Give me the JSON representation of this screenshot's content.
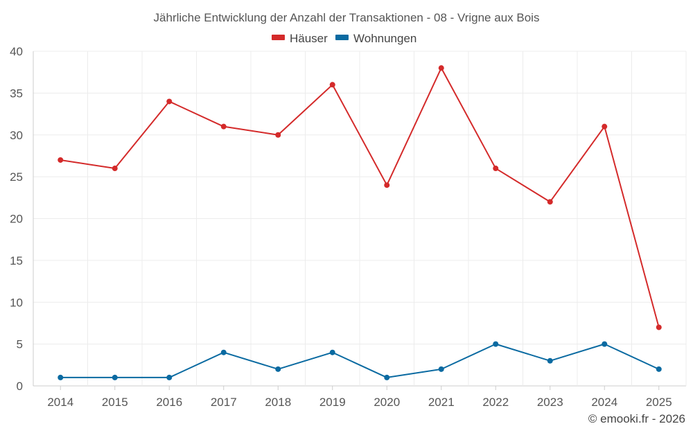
{
  "chart_data": {
    "type": "line",
    "title": "Jährliche Entwicklung der Anzahl der Transaktionen - 08 - Vrigne aux Bois",
    "categories": [
      "2014",
      "2015",
      "2016",
      "2017",
      "2018",
      "2019",
      "2020",
      "2021",
      "2022",
      "2023",
      "2024",
      "2025"
    ],
    "series": [
      {
        "name": "Häuser",
        "color": "#d42a2a",
        "values": [
          27,
          26,
          34,
          31,
          30,
          36,
          24,
          38,
          26,
          22,
          31,
          7
        ]
      },
      {
        "name": "Wohnungen",
        "color": "#0a6aa1",
        "values": [
          1,
          1,
          1,
          4,
          2,
          4,
          1,
          2,
          5,
          3,
          5,
          2
        ]
      }
    ],
    "ylim": [
      0,
      40
    ],
    "yticks": [
      "0",
      "5",
      "10",
      "15",
      "20",
      "25",
      "30",
      "35",
      "40"
    ],
    "xlabel": "",
    "ylabel": "",
    "legend_position": "top-center",
    "grid": true
  },
  "credit": "© emooki.fr - 2026"
}
